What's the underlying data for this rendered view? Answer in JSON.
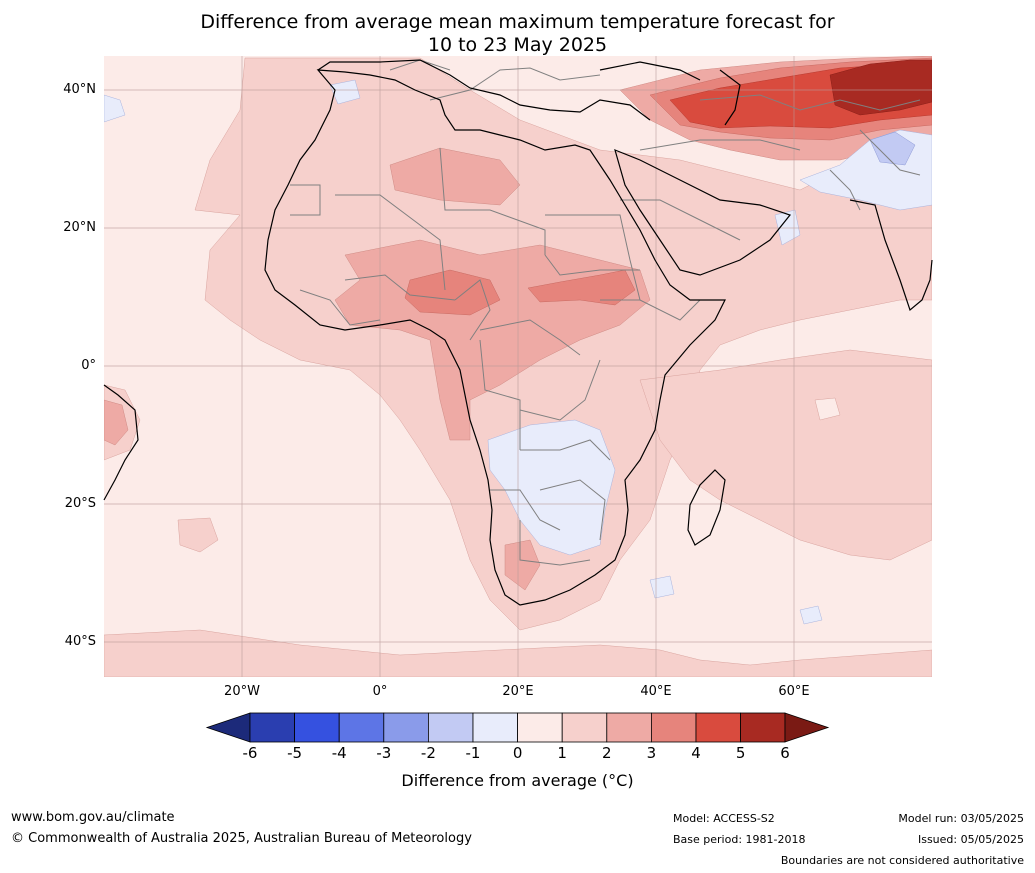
{
  "title_line1": "Difference from average mean maximum temperature forecast for",
  "title_line2": "10 to 23 May 2025",
  "lat_labels": [
    "40°N",
    "20°N",
    "0°",
    "20°S",
    "40°S"
  ],
  "lon_labels": [
    "20°W",
    "0°",
    "20°E",
    "40°E",
    "60°E"
  ],
  "colorbar": {
    "label": "Difference from average (°C)",
    "ticks": [
      "-6",
      "-5",
      "-4",
      "-3",
      "-2",
      "-1",
      "0",
      "1",
      "2",
      "3",
      "4",
      "5",
      "6"
    ],
    "colors": [
      "#1c2a7a",
      "#2a3eb0",
      "#3551e0",
      "#5d75e6",
      "#8a9bea",
      "#c2caf3",
      "#e8ecfb",
      "#fcebe8",
      "#f6d0cc",
      "#eeaaa5",
      "#e6847c",
      "#d94b3e",
      "#a82a22",
      "#7a1a14"
    ]
  },
  "footer": {
    "website": "www.bom.gov.au/climate",
    "copyright": "© Commonwealth of Australia 2025, Australian Bureau of Meteorology",
    "model": "Model: ACCESS-S2",
    "base_period": "Base period: 1981-2018",
    "model_run": "Model run: 03/05/2025",
    "issued": "Issued: 05/05/2025",
    "disclaimer": "Boundaries are not considered authoritative"
  }
}
